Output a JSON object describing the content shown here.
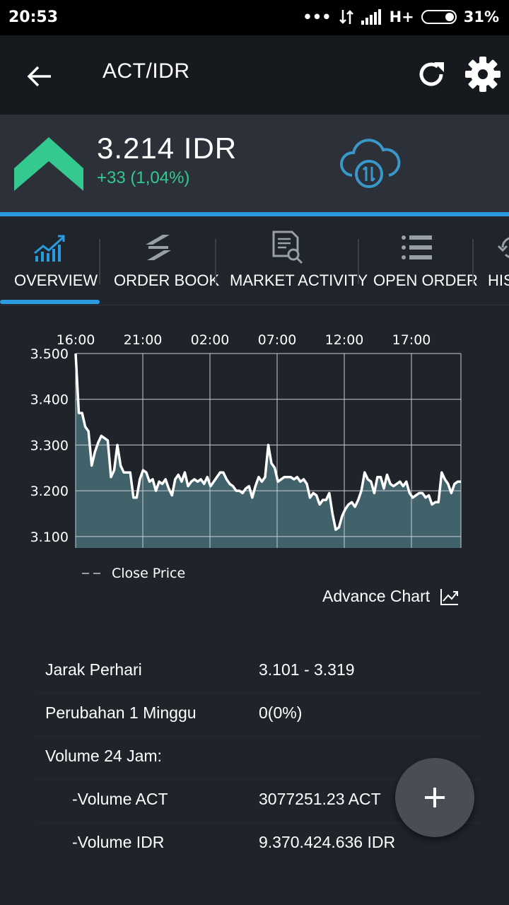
{
  "status_bar": {
    "time": "20:53",
    "network": "H+",
    "battery": "31%"
  },
  "app_bar": {
    "title": "ACT/IDR"
  },
  "ticker": {
    "price": "3.214 IDR",
    "change": "+33 (1,04%)"
  },
  "tabs": [
    {
      "label": "OVERVIEW",
      "icon": "line-chart-icon",
      "active": true
    },
    {
      "label": "ORDER BOOK",
      "icon": "swap-arrows-icon"
    },
    {
      "label": "MARKET ACTIVITY",
      "icon": "document-search-icon"
    },
    {
      "label": "OPEN ORDER",
      "icon": "list-icon"
    },
    {
      "label": "HIS",
      "icon": "history-icon"
    }
  ],
  "chart_data": {
    "type": "area",
    "x_ticks": [
      "16:00",
      "21:00",
      "02:00",
      "07:00",
      "12:00",
      "17:00"
    ],
    "y_ticks": [
      "3.500",
      "3.400",
      "3.300",
      "3.200",
      "3.100"
    ],
    "ylim": [
      3075,
      3500
    ],
    "series": [
      {
        "name": "Close Price",
        "values": [
          3500,
          3370,
          3370,
          3340,
          3330,
          3255,
          3285,
          3305,
          3320,
          3315,
          3310,
          3230,
          3245,
          3300,
          3255,
          3240,
          3240,
          3240,
          3185,
          3185,
          3225,
          3245,
          3240,
          3220,
          3225,
          3200,
          3220,
          3215,
          3225,
          3205,
          3190,
          3225,
          3235,
          3220,
          3240,
          3210,
          3220,
          3225,
          3220,
          3225,
          3215,
          3230,
          3210,
          3220,
          3230,
          3240,
          3240,
          3225,
          3215,
          3210,
          3200,
          3200,
          3195,
          3205,
          3210,
          3185,
          3210,
          3230,
          3220,
          3230,
          3300,
          3260,
          3250,
          3220,
          3225,
          3230,
          3230,
          3230,
          3225,
          3230,
          3220,
          3225,
          3215,
          3185,
          3195,
          3190,
          3170,
          3180,
          3180,
          3195,
          3150,
          3115,
          3120,
          3145,
          3160,
          3170,
          3175,
          3165,
          3180,
          3200,
          3240,
          3225,
          3220,
          3195,
          3230,
          3230,
          3205,
          3235,
          3215,
          3210,
          3215,
          3220,
          3210,
          3220,
          3195,
          3185,
          3190,
          3195,
          3195,
          3185,
          3190,
          3170,
          3175,
          3175,
          3240,
          3225,
          3215,
          3195,
          3215,
          3220,
          3220
        ]
      }
    ],
    "xlabel": "",
    "ylabel": "",
    "grid": true,
    "legend": "bottom-left"
  },
  "advance_chart_label": "Advance Chart",
  "stats": [
    {
      "label": "Jarak Perhari",
      "value": "3.101 - 3.319",
      "indent": false
    },
    {
      "label": "Perubahan 1 Minggu",
      "value": "0(0%)",
      "indent": false
    },
    {
      "label": "Volume 24 Jam:",
      "value": "",
      "indent": false
    },
    {
      "label": "-Volume ACT",
      "value": "3077251.23 ACT",
      "indent": true
    },
    {
      "label": "-Volume IDR",
      "value": "9.370.424.636 IDR",
      "indent": true
    }
  ]
}
